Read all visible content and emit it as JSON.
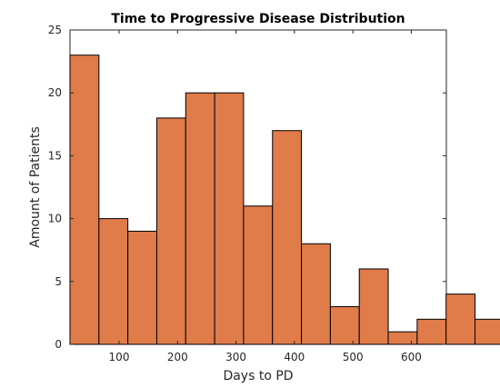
{
  "chart_data": {
    "type": "bar",
    "title": "Time to Progressive Disease Distribution",
    "xlabel": "Days to PD",
    "ylabel": "Amount of Patients",
    "bin_start": 16,
    "bin_width": 49.5,
    "values": [
      23,
      10,
      9,
      18,
      20,
      20,
      11,
      17,
      8,
      3,
      6,
      1,
      2,
      4,
      2
    ],
    "xlim": [
      16,
      660
    ],
    "ylim": [
      0,
      25
    ],
    "xticks": [
      100,
      200,
      300,
      400,
      500,
      600
    ],
    "yticks": [
      0,
      5,
      10,
      15,
      20,
      25
    ],
    "bar_color": "#e07b4a",
    "edge_color": "#000000",
    "grid": false,
    "legend": "none"
  }
}
